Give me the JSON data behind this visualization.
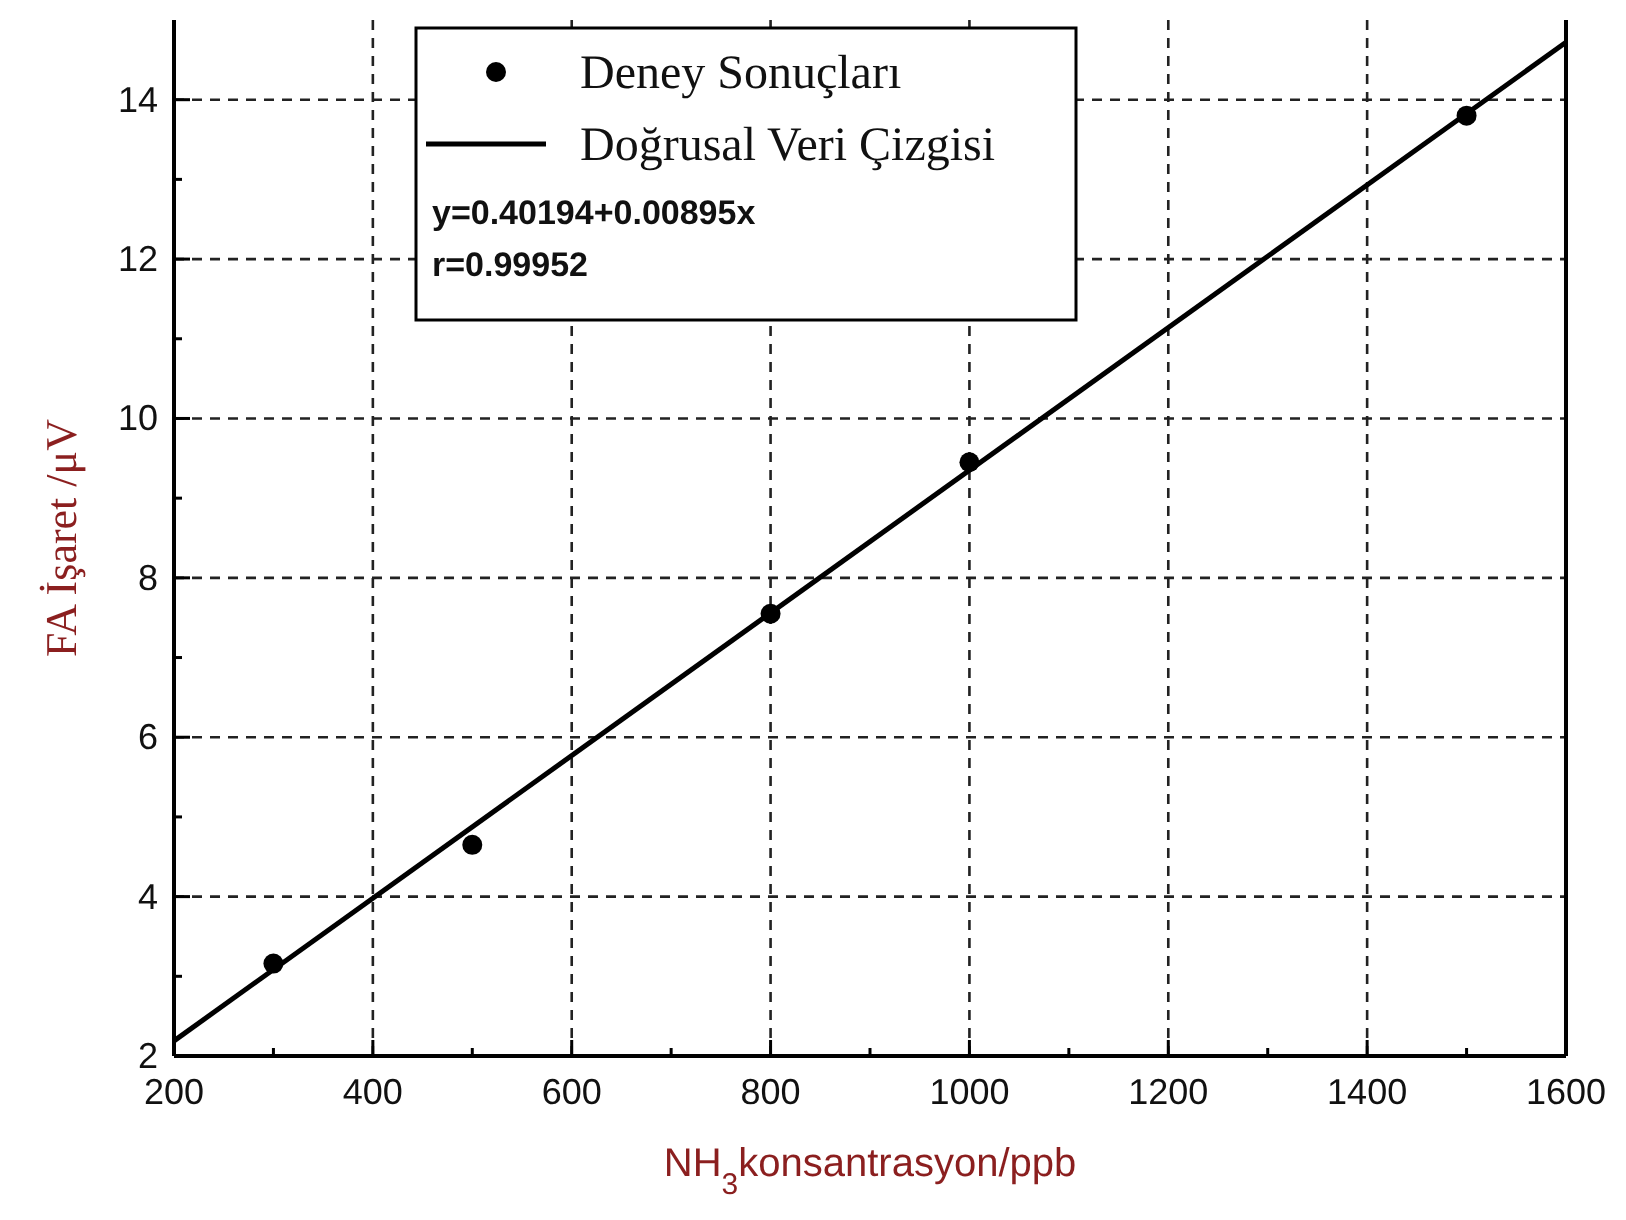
{
  "chart_data": {
    "type": "scatter",
    "xlabel": "NH$_{3}$konsantrasyon/ppb",
    "ylabel": "FA İşaret /μV",
    "xlim": [
      200,
      1600
    ],
    "ylim": [
      2,
      15
    ],
    "xticks": [
      200,
      {
        "value": 300,
        "label": null
      },
      400,
      {
        "value": 500,
        "label": null
      },
      600,
      {
        "value": 700,
        "label": null
      },
      800,
      {
        "value": 900,
        "label": null
      },
      1000,
      {
        "value": 1100,
        "label": null
      },
      1200,
      {
        "value": 1300,
        "label": null
      },
      1400,
      {
        "value": 1500,
        "label": null
      },
      1600
    ],
    "yticks": [
      2,
      {
        "value": 3,
        "label": null
      },
      4,
      {
        "value": 5,
        "label": null
      },
      6,
      {
        "value": 7,
        "label": null
      },
      8,
      {
        "value": 9,
        "label": null
      },
      10,
      {
        "value": 11,
        "label": null
      },
      12,
      {
        "value": 13,
        "label": null
      },
      14
    ],
    "grid": true,
    "legend": "top",
    "series": [
      {
        "name": "Deney Sonuçları",
        "marker": "circle",
        "color": "#000000",
        "x": [
          300,
          500,
          800,
          1000,
          1500
        ],
        "values": [
          3.16,
          4.65,
          7.55,
          9.45,
          13.8
        ]
      },
      {
        "name": "Doğrusal Veri Çizgisi",
        "type": "line",
        "marker": "none",
        "color": "#000000",
        "line_style": "solid",
        "x": [
          200,
          1600
        ],
        "values": [
          2.19,
          14.72
        ]
      }
    ],
    "annotations": [
      "y=0.40194+0.00895x",
      "r=0.99952"
    ]
  }
}
